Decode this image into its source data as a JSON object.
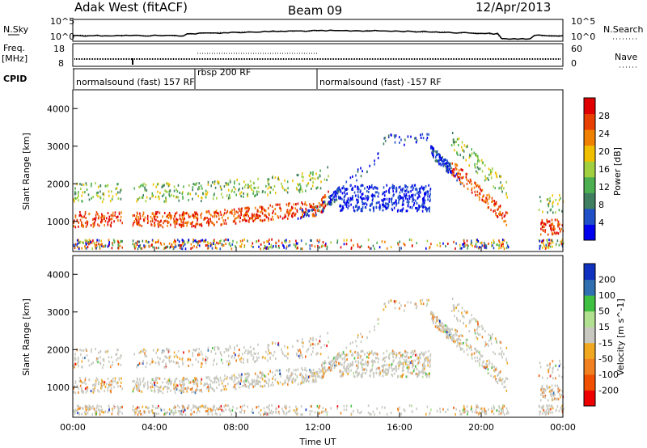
{
  "header": {
    "radar": "Adak West (fitACF)",
    "beam": "Beam 09",
    "date": "12/Apr/2013"
  },
  "panel_labels": {
    "nsky": "N.Sky",
    "freq": "Freq.",
    "freq_unit": "[MHz]",
    "cpid": "CPID",
    "nsearch": "N.Search",
    "nave": "Nave"
  },
  "colors": {
    "power_scale": [
      "#0000ee",
      "#2050c8",
      "#3f7f5f",
      "#4caf50",
      "#a0d040",
      "#f0c000",
      "#f08000",
      "#e84000",
      "#e00000"
    ],
    "velocity_scale": [
      "#ee0000",
      "#f05000",
      "#f08020",
      "#f0a820",
      "#c8c8c0",
      "#b0e090",
      "#40c040",
      "#3070b0",
      "#1030c0"
    ]
  },
  "chart_data": [
    {
      "type": "line",
      "name": "noise-panel",
      "left_ticks": [
        "10^5",
        "10^0"
      ],
      "right_ticks": [
        "10^5",
        "10^0"
      ],
      "left_label": "N.Sky",
      "right_label": "N.Search"
    },
    {
      "type": "line",
      "name": "freq-panel",
      "left_ticks": [
        "18",
        "8"
      ],
      "right_ticks": [
        "60",
        "0"
      ],
      "left_label": "Freq. [MHz]",
      "right_label": "Nave"
    },
    {
      "type": "table",
      "name": "cpid-panel",
      "segments": [
        {
          "start_h": 0,
          "end_h": 6,
          "label": "normalsound (fast) 157 RF"
        },
        {
          "start_h": 6,
          "end_h": 12,
          "label": "rbsp 200 RF"
        },
        {
          "start_h": 12,
          "end_h": 24,
          "label": "normalsound (fast) -157 RF"
        }
      ]
    },
    {
      "type": "heatmap",
      "name": "power",
      "ylabel": "Slant Range [km]",
      "ylim": [
        200,
        4500
      ],
      "yticks": [
        "1000",
        "2000",
        "3000",
        "4000"
      ],
      "colorbar_label": "Power [dB]",
      "colorbar_ticks": [
        "28",
        "24",
        "20",
        "16",
        "12",
        "8",
        "4"
      ]
    },
    {
      "type": "heatmap",
      "name": "velocity",
      "ylabel": "Slant Range [km]",
      "ylim": [
        200,
        4500
      ],
      "yticks": [
        "1000",
        "2000",
        "3000",
        "4000"
      ],
      "colorbar_label": "Velocity [m s^-1]",
      "colorbar_ticks": [
        "200",
        "100",
        "50",
        "15",
        "-15",
        "-50",
        "-100",
        "-200"
      ]
    }
  ],
  "xaxis": {
    "label": "Time UT",
    "ticks": [
      "00:00",
      "04:00",
      "08:00",
      "12:00",
      "16:00",
      "20:00",
      "00:00"
    ]
  }
}
